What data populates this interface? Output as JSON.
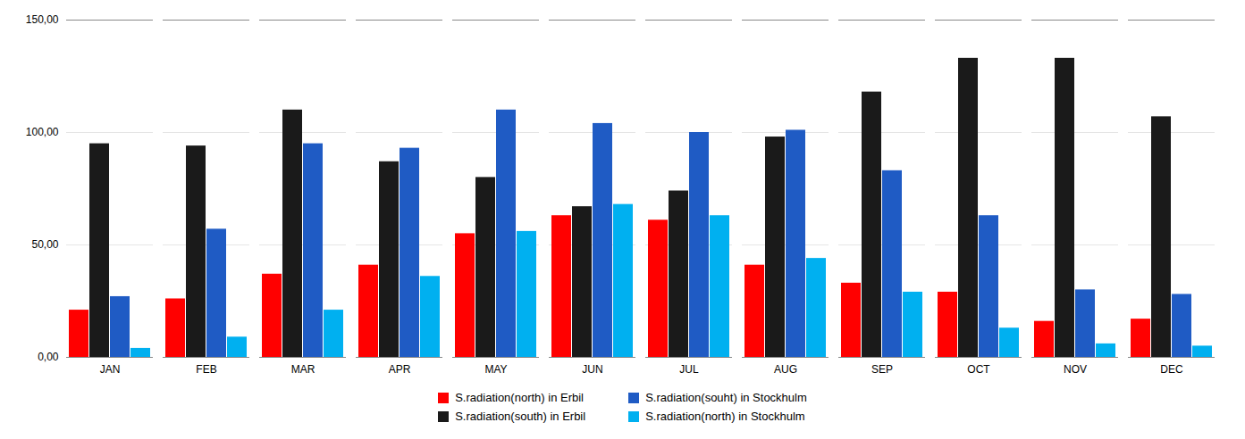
{
  "chart_data": {
    "type": "bar",
    "categories": [
      "JAN",
      "FEB",
      "MAR",
      "APR",
      "MAY",
      "JUN",
      "JUL",
      "AUG",
      "SEP",
      "OCT",
      "NOV",
      "DEC"
    ],
    "series": [
      {
        "name": "S.radiation(north) in Erbil",
        "color": "#FF0000",
        "values": [
          21,
          26,
          37,
          41,
          55,
          63,
          61,
          41,
          33,
          29,
          16,
          17
        ]
      },
      {
        "name": "S.radiation(south) in Erbil",
        "color": "#1A1A1A",
        "values": [
          95,
          94,
          110,
          87,
          80,
          67,
          74,
          98,
          118,
          133,
          133,
          107
        ]
      },
      {
        "name": "S.radiation(souht) in Stockhulm",
        "color": "#1F5BC4",
        "values": [
          27,
          57,
          95,
          93,
          110,
          104,
          100,
          101,
          83,
          63,
          30,
          28
        ]
      },
      {
        "name": "S.radiation(north) in Stockhulm",
        "color": "#00B0F0",
        "values": [
          4,
          9,
          21,
          36,
          56,
          68,
          63,
          44,
          29,
          13,
          6,
          5
        ]
      }
    ],
    "ylim": [
      0,
      150
    ],
    "yticks": [
      {
        "value": 0,
        "label": "0,00"
      },
      {
        "value": 50,
        "label": "50,00"
      },
      {
        "value": 100,
        "label": "100,00"
      },
      {
        "value": 150,
        "label": "150,00"
      }
    ],
    "grid": true,
    "legend": "bottom"
  }
}
